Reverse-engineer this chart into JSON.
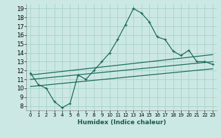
{
  "bg_color": "#cce8e4",
  "grid_color": "#aad4ce",
  "line_color": "#1a6b5a",
  "x_label": "Humidex (Indice chaleur)",
  "xlim": [
    -0.5,
    23.5
  ],
  "ylim": [
    7.5,
    19.5
  ],
  "xticks": [
    0,
    1,
    2,
    3,
    4,
    5,
    6,
    7,
    8,
    9,
    10,
    11,
    12,
    13,
    14,
    15,
    16,
    17,
    18,
    19,
    20,
    21,
    22,
    23
  ],
  "yticks": [
    8,
    9,
    10,
    11,
    12,
    13,
    14,
    15,
    16,
    17,
    18,
    19
  ],
  "line1_x": [
    0,
    1,
    2,
    3,
    4,
    5,
    6,
    7,
    8,
    9,
    10,
    11,
    12,
    13,
    14,
    15,
    16,
    17,
    18,
    19,
    20,
    21,
    22,
    23
  ],
  "line1_y": [
    11.7,
    10.4,
    10.0,
    8.5,
    7.8,
    8.3,
    11.5,
    11.0,
    12.0,
    13.0,
    14.0,
    15.5,
    17.2,
    19.0,
    18.5,
    17.5,
    15.8,
    15.5,
    14.2,
    13.7,
    14.3,
    13.0,
    13.0,
    12.7
  ],
  "line2_x": [
    0,
    23
  ],
  "line2_y": [
    11.5,
    13.8
  ],
  "line3_x": [
    0,
    23
  ],
  "line3_y": [
    10.2,
    12.2
  ],
  "line4_x": [
    0,
    23
  ],
  "line4_y": [
    11.0,
    13.0
  ]
}
